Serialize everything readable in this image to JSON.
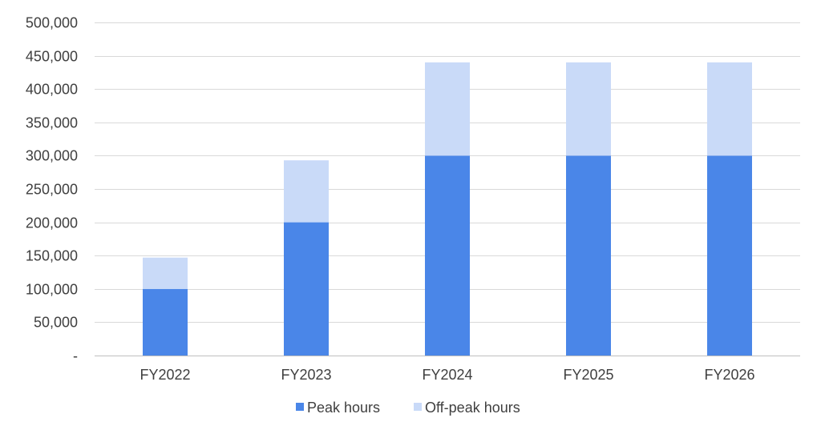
{
  "chart_data": {
    "type": "bar",
    "stacked": true,
    "categories": [
      "FY2022",
      "FY2023",
      "FY2024",
      "FY2025",
      "FY2026"
    ],
    "series": [
      {
        "name": "Peak hours",
        "color": "#4a86e8",
        "values": [
          100000,
          200000,
          300000,
          300000,
          300000
        ]
      },
      {
        "name": "Off-peak hours",
        "color": "#c9daf8",
        "values": [
          47000,
          93000,
          140000,
          140000,
          140000
        ]
      }
    ],
    "ylim": [
      0,
      500000
    ],
    "yticks": [
      {
        "value": 0,
        "label": "-"
      },
      {
        "value": 50000,
        "label": "50,000"
      },
      {
        "value": 100000,
        "label": "100,000"
      },
      {
        "value": 150000,
        "label": "150,000"
      },
      {
        "value": 200000,
        "label": "200,000"
      },
      {
        "value": 250000,
        "label": "250,000"
      },
      {
        "value": 300000,
        "label": "300,000"
      },
      {
        "value": 350000,
        "label": "350,000"
      },
      {
        "value": 400000,
        "label": "400,000"
      },
      {
        "value": 450000,
        "label": "450,000"
      },
      {
        "value": 500000,
        "label": "500,000"
      }
    ],
    "grid": true,
    "legend_position": "bottom"
  }
}
